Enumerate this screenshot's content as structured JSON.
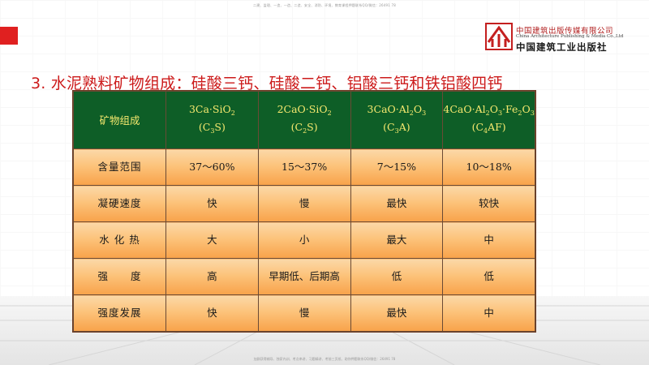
{
  "top_banner": "二建、监理、一造、一造、二造、安全、消防、环境、教育课程押题联系QQ/微信：26491 78",
  "bottom_banner": "加群获得辅导、独家内训、考点串讲、习题精讲、考前三页纸、助你押题联系QQ/微信：26491 78",
  "publisher": {
    "name_cn": "中国建筑出版传媒有限公司",
    "name_en": "China Architecture Publishing & Media Co.,Ltd",
    "name_art": "中国建筑工业出版社"
  },
  "title": "3. 水泥熟料矿物组成：硅酸三钙、硅酸二钙、铝酸三钙和铁铝酸四钙",
  "table": {
    "header": {
      "label": "矿物组成",
      "cols": [
        {
          "formula": "3Ca·SiO",
          "formula_sub": "2",
          "abbr_pre": "(C",
          "abbr_sub": "3",
          "abbr_post": "S)"
        },
        {
          "formula": "2CaO·SiO",
          "formula_sub": "2",
          "abbr_pre": "(C",
          "abbr_sub": "2",
          "abbr_post": "S)"
        },
        {
          "formula": "3CaO·Al",
          "formula_sub": "2",
          "formula_tail": "O",
          "formula_sub2": "3",
          "abbr_pre": "(C",
          "abbr_sub": "3",
          "abbr_post": "A)"
        },
        {
          "formula": "4CaO·Al",
          "formula_sub": "2",
          "formula_tail": "O",
          "formula_sub2": "3",
          "formula_tail2": "·Fe",
          "formula_sub3": "2",
          "formula_tail3": "O",
          "formula_sub4": "3",
          "abbr_pre": "(C",
          "abbr_sub": "4",
          "abbr_post": "AF)"
        }
      ]
    },
    "rows": [
      {
        "label": "含量范围",
        "cells": [
          "37～60%",
          "15～37%",
          "7～15%",
          "10～18%"
        ]
      },
      {
        "label": "凝硬速度",
        "cells": [
          "快",
          "慢",
          "最快",
          "较快"
        ]
      },
      {
        "label": "水 化 热",
        "cells": [
          "大",
          "小",
          "最大",
          "中"
        ]
      },
      {
        "label": "强　　度",
        "cells": [
          "高",
          "早期低、后期高",
          "低",
          "低"
        ]
      },
      {
        "label": "强度发展",
        "cells": [
          "快",
          "慢",
          "最快",
          "中"
        ]
      }
    ]
  },
  "colors": {
    "title": "#cc1a1a",
    "header_bg": "#0e5e27",
    "header_text": "#f5e86e",
    "cell_gradient_top": "#fbd8a8",
    "cell_gradient_bottom": "#f8a24a",
    "accent_red": "#e02020"
  }
}
